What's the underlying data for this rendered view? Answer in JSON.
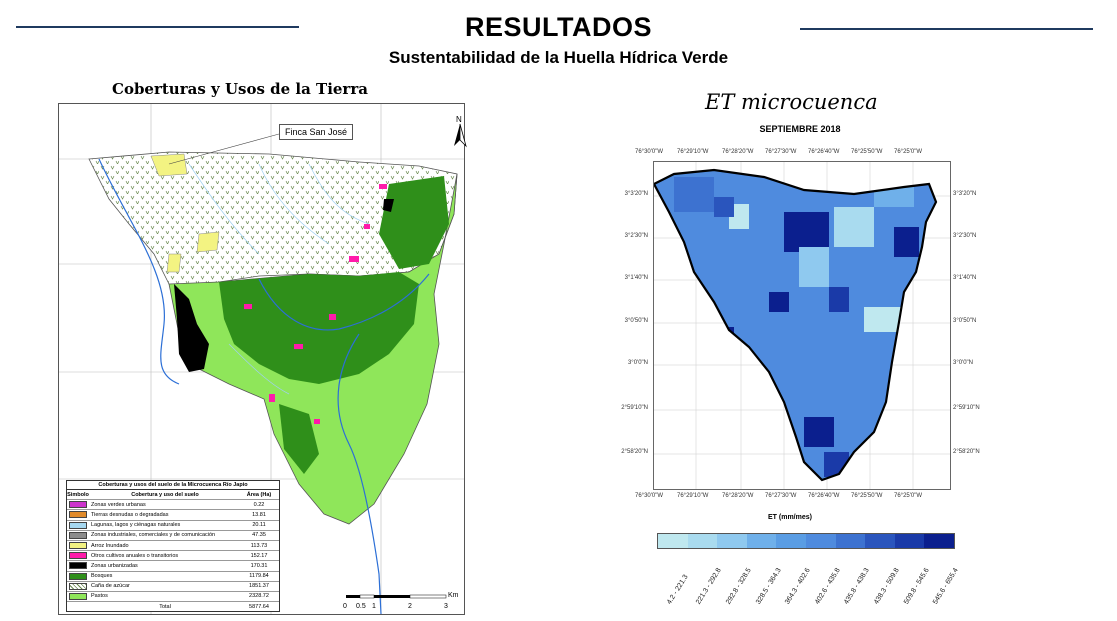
{
  "title": "RESULTADOS",
  "subtitle": "Sustentabilidad de la Huella Hídrica Verde",
  "left_panel": {
    "heading": "Coberturas y Usos de la Tierra",
    "finca_label": "Finca San José",
    "north": "N",
    "legend": {
      "title": "Coberturas y usos del suelo de la Microcuenca Río Japio",
      "headers": [
        "Simbolo",
        "Cobertura y uso del suelo",
        "Área (Ha)"
      ],
      "rows": [
        {
          "color": "#cc33cc",
          "label": "Zonas verdes urbanas",
          "area": "0.22"
        },
        {
          "color": "#e08a2a",
          "label": "Tierras desnudas o degradadas",
          "area": "13.81"
        },
        {
          "color": "#a6d8f0",
          "label": "Lagunas, lagos y ciénagas naturales",
          "area": "20.11"
        },
        {
          "color": "#8c8c8c",
          "label": "Zonas industriales, comerciales y de comunicación",
          "area": "47.35"
        },
        {
          "color": "#f3f382",
          "label": "Arroz Inundado",
          "area": "113.73"
        },
        {
          "color": "#ff1aaa",
          "label": "Otros cultivos anuales o transitorios",
          "area": "152.17"
        },
        {
          "color": "#000000",
          "label": "Zonas urbanizadas",
          "area": "170.31"
        },
        {
          "color": "#2f8f1a",
          "label": "Bosques",
          "area": "1179.84"
        },
        {
          "color": "pattern",
          "label": "Caña de azúcar",
          "area": "1851.37"
        },
        {
          "color": "#8fe65a",
          "label": "Pastos",
          "area": "2328.72"
        }
      ],
      "total_label": "Total",
      "total_value": "5877.64"
    },
    "scale": {
      "labels": [
        "0",
        "0.5",
        "1",
        "2",
        "3"
      ],
      "unit": "Km"
    }
  },
  "right_panel": {
    "heading": "ET microcuenca",
    "chart_title": "SEPTIEMBRE 2018",
    "x_ticks": [
      "76°30'0\"W",
      "76°29'10\"W",
      "76°28'20\"W",
      "76°27'30\"W",
      "76°26'40\"W",
      "76°25'50\"W",
      "76°25'0\"W"
    ],
    "y_ticks": [
      "3°3'20\"N",
      "3°2'30\"N",
      "3°1'40\"N",
      "3°0'50\"N",
      "3°0'0\"N",
      "2°59'10\"N",
      "2°58'20\"N"
    ],
    "colorbar_label": "ET (mm/mes)",
    "classes": [
      {
        "range": "4.2 - 221.3",
        "color": "#bfe8ef"
      },
      {
        "range": "221.3 - 292.8",
        "color": "#a9dbef"
      },
      {
        "range": "292.8 - 328.5",
        "color": "#8fc9ef"
      },
      {
        "range": "328.5 - 364.3",
        "color": "#6fb0ea"
      },
      {
        "range": "364.3 - 402.6",
        "color": "#5a9de4"
      },
      {
        "range": "402.6 - 435.8",
        "color": "#4f8bde"
      },
      {
        "range": "435.8 - 438.3",
        "color": "#3d72d0"
      },
      {
        "range": "438.3 - 509.8",
        "color": "#2a55bd"
      },
      {
        "range": "509.8 - 545.6",
        "color": "#1a3aa8"
      },
      {
        "range": "545.6 - 655.4",
        "color": "#0b1f8e"
      }
    ]
  }
}
